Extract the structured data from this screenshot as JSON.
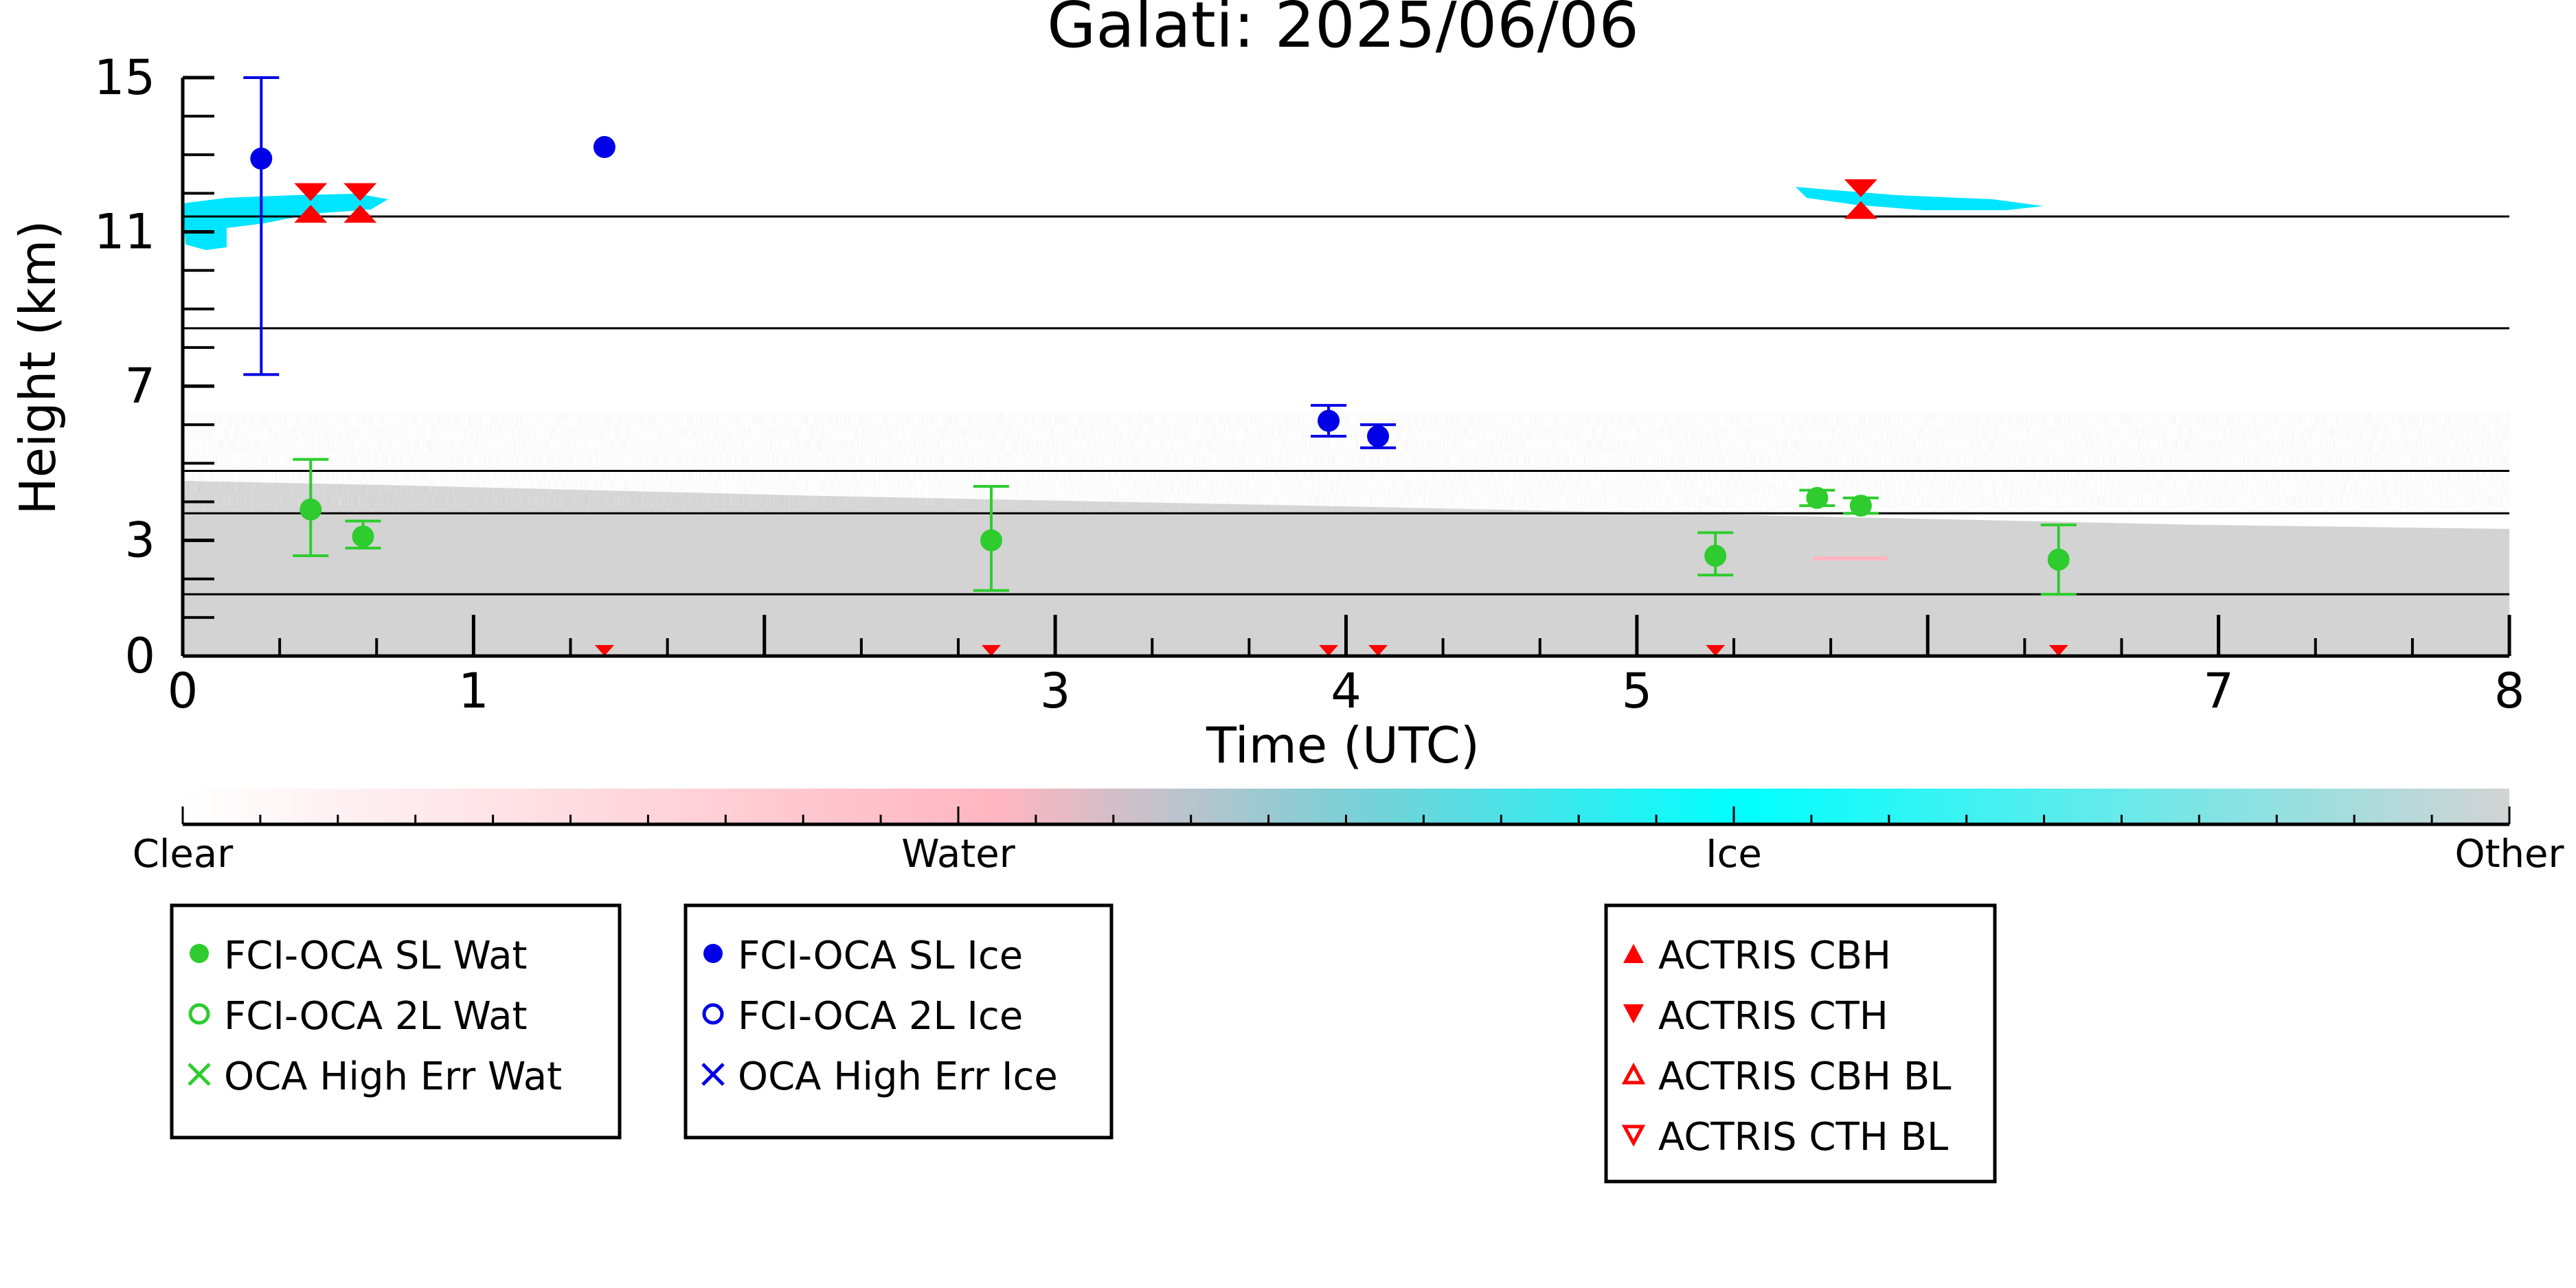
{
  "chart_data": {
    "type": "scatter",
    "title": "Galati: 2025/06/06",
    "xlabel": "Time (UTC)",
    "ylabel": "Height (km)",
    "xlim": [
      0,
      8
    ],
    "ylim": [
      0,
      15
    ],
    "x_tick_labels": [
      "0",
      "1",
      "3",
      "4",
      "5",
      "7",
      "8"
    ],
    "y_tick_labels": [
      "0",
      "3",
      "7",
      "11",
      "15"
    ],
    "colorbar": {
      "labels": [
        "Clear",
        "Water",
        "Ice",
        "Other"
      ],
      "colors": [
        "#ffffff",
        "#ffb6c1",
        "#00ffff",
        "#d3d3d3"
      ]
    },
    "colors": {
      "water": "#2ecc2e",
      "ice": "#0000e6",
      "actris": "#ff0000",
      "background": "#d3d3d3",
      "ice_cloud": "#00e5ff",
      "water_cloud": "#ffb6c1"
    },
    "horizontal_lines": [
      1.6,
      3.7,
      4.8,
      8.5,
      11.4
    ],
    "series": [
      {
        "name": "FCI-OCA SL Wat",
        "points": [
          {
            "x": 0.44,
            "y": 3.8,
            "err_lo": 2.6,
            "err_hi": 5.1
          },
          {
            "x": 0.62,
            "y": 3.1,
            "err_lo": 2.8,
            "err_hi": 3.5
          },
          {
            "x": 2.78,
            "y": 3.0,
            "err_lo": 1.7,
            "err_hi": 4.4
          },
          {
            "x": 5.27,
            "y": 2.6,
            "err_lo": 2.1,
            "err_hi": 3.2
          },
          {
            "x": 5.62,
            "y": 4.1,
            "err_lo": 3.9,
            "err_hi": 4.3
          },
          {
            "x": 5.77,
            "y": 3.9,
            "err_lo": 3.7,
            "err_hi": 4.1
          },
          {
            "x": 6.45,
            "y": 2.5,
            "err_lo": 1.6,
            "err_hi": 3.4
          }
        ]
      },
      {
        "name": "FCI-OCA SL Ice",
        "points": [
          {
            "x": 0.27,
            "y": 12.9,
            "err_lo": 7.3,
            "err_hi": 15.0
          },
          {
            "x": 1.45,
            "y": 13.2,
            "err_lo": null,
            "err_hi": null
          },
          {
            "x": 3.94,
            "y": 6.1,
            "err_lo": 5.7,
            "err_hi": 6.5
          },
          {
            "x": 4.11,
            "y": 5.7,
            "err_lo": 5.4,
            "err_hi": 6.0
          }
        ]
      },
      {
        "name": "ACTRIS CTH",
        "points": [
          {
            "x": 0.44,
            "y": 11.8
          },
          {
            "x": 0.61,
            "y": 11.8
          },
          {
            "x": 5.77,
            "y": 11.9
          },
          {
            "x": 1.45,
            "y": 0.0
          },
          {
            "x": 2.78,
            "y": 0.0
          },
          {
            "x": 3.94,
            "y": 0.0
          },
          {
            "x": 4.11,
            "y": 0.0
          },
          {
            "x": 5.27,
            "y": 0.0
          },
          {
            "x": 6.45,
            "y": 0.0
          }
        ]
      },
      {
        "name": "ACTRIS CBH",
        "points": [
          {
            "x": 0.44,
            "y": 11.7
          },
          {
            "x": 0.61,
            "y": 11.7
          },
          {
            "x": 5.77,
            "y": 11.8
          }
        ]
      }
    ],
    "legends": [
      {
        "entries": [
          {
            "label": "FCI-OCA SL Wat",
            "marker": "filled-circle",
            "color": "#2ecc2e"
          },
          {
            "label": "FCI-OCA 2L Wat",
            "marker": "open-circle",
            "color": "#2ecc2e"
          },
          {
            "label": "OCA High Err Wat",
            "marker": "cross",
            "color": "#2ecc2e"
          }
        ]
      },
      {
        "entries": [
          {
            "label": "FCI-OCA SL Ice",
            "marker": "filled-circle",
            "color": "#0000e6"
          },
          {
            "label": "FCI-OCA 2L Ice",
            "marker": "open-circle",
            "color": "#0000e6"
          },
          {
            "label": "OCA High Err Ice",
            "marker": "cross",
            "color": "#0000e6"
          }
        ]
      },
      {
        "entries": [
          {
            "label": "ACTRIS CBH",
            "marker": "filled-up",
            "color": "#ff0000"
          },
          {
            "label": "ACTRIS CTH",
            "marker": "filled-down",
            "color": "#ff0000"
          },
          {
            "label": "ACTRIS CBH BL",
            "marker": "open-up",
            "color": "#ff0000"
          },
          {
            "label": "ACTRIS CTH BL",
            "marker": "open-down",
            "color": "#ff0000"
          }
        ]
      }
    ]
  }
}
